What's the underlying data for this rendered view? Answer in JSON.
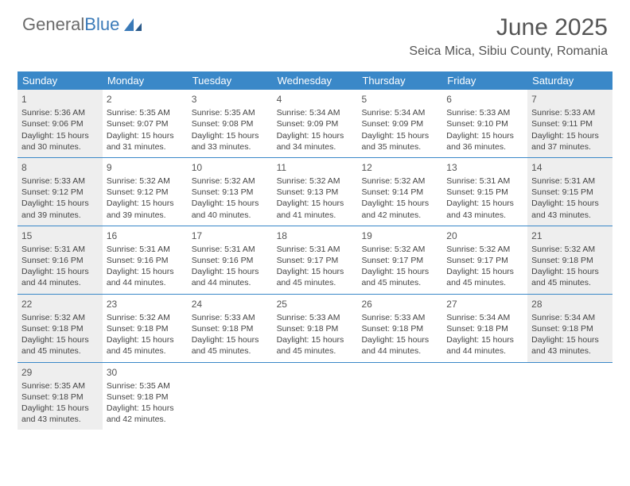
{
  "logo": {
    "part1": "General",
    "part2": "Blue"
  },
  "title": "June 2025",
  "location": "Seica Mica, Sibiu County, Romania",
  "colors": {
    "header_bg": "#3a88c8",
    "header_text": "#ffffff",
    "shaded_bg": "#eeeeee",
    "text": "#444444",
    "border": "#3a88c8"
  },
  "day_headers": [
    "Sunday",
    "Monday",
    "Tuesday",
    "Wednesday",
    "Thursday",
    "Friday",
    "Saturday"
  ],
  "weeks": [
    [
      {
        "day": "1",
        "sunrise": "5:36 AM",
        "sunset": "9:06 PM",
        "dl": "15 hours and 30 minutes.",
        "shaded": true
      },
      {
        "day": "2",
        "sunrise": "5:35 AM",
        "sunset": "9:07 PM",
        "dl": "15 hours and 31 minutes.",
        "shaded": false
      },
      {
        "day": "3",
        "sunrise": "5:35 AM",
        "sunset": "9:08 PM",
        "dl": "15 hours and 33 minutes.",
        "shaded": false
      },
      {
        "day": "4",
        "sunrise": "5:34 AM",
        "sunset": "9:09 PM",
        "dl": "15 hours and 34 minutes.",
        "shaded": false
      },
      {
        "day": "5",
        "sunrise": "5:34 AM",
        "sunset": "9:09 PM",
        "dl": "15 hours and 35 minutes.",
        "shaded": false
      },
      {
        "day": "6",
        "sunrise": "5:33 AM",
        "sunset": "9:10 PM",
        "dl": "15 hours and 36 minutes.",
        "shaded": false
      },
      {
        "day": "7",
        "sunrise": "5:33 AM",
        "sunset": "9:11 PM",
        "dl": "15 hours and 37 minutes.",
        "shaded": true
      }
    ],
    [
      {
        "day": "8",
        "sunrise": "5:33 AM",
        "sunset": "9:12 PM",
        "dl": "15 hours and 39 minutes.",
        "shaded": true
      },
      {
        "day": "9",
        "sunrise": "5:32 AM",
        "sunset": "9:12 PM",
        "dl": "15 hours and 39 minutes.",
        "shaded": false
      },
      {
        "day": "10",
        "sunrise": "5:32 AM",
        "sunset": "9:13 PM",
        "dl": "15 hours and 40 minutes.",
        "shaded": false
      },
      {
        "day": "11",
        "sunrise": "5:32 AM",
        "sunset": "9:13 PM",
        "dl": "15 hours and 41 minutes.",
        "shaded": false
      },
      {
        "day": "12",
        "sunrise": "5:32 AM",
        "sunset": "9:14 PM",
        "dl": "15 hours and 42 minutes.",
        "shaded": false
      },
      {
        "day": "13",
        "sunrise": "5:31 AM",
        "sunset": "9:15 PM",
        "dl": "15 hours and 43 minutes.",
        "shaded": false
      },
      {
        "day": "14",
        "sunrise": "5:31 AM",
        "sunset": "9:15 PM",
        "dl": "15 hours and 43 minutes.",
        "shaded": true
      }
    ],
    [
      {
        "day": "15",
        "sunrise": "5:31 AM",
        "sunset": "9:16 PM",
        "dl": "15 hours and 44 minutes.",
        "shaded": true
      },
      {
        "day": "16",
        "sunrise": "5:31 AM",
        "sunset": "9:16 PM",
        "dl": "15 hours and 44 minutes.",
        "shaded": false
      },
      {
        "day": "17",
        "sunrise": "5:31 AM",
        "sunset": "9:16 PM",
        "dl": "15 hours and 44 minutes.",
        "shaded": false
      },
      {
        "day": "18",
        "sunrise": "5:31 AM",
        "sunset": "9:17 PM",
        "dl": "15 hours and 45 minutes.",
        "shaded": false
      },
      {
        "day": "19",
        "sunrise": "5:32 AM",
        "sunset": "9:17 PM",
        "dl": "15 hours and 45 minutes.",
        "shaded": false
      },
      {
        "day": "20",
        "sunrise": "5:32 AM",
        "sunset": "9:17 PM",
        "dl": "15 hours and 45 minutes.",
        "shaded": false
      },
      {
        "day": "21",
        "sunrise": "5:32 AM",
        "sunset": "9:18 PM",
        "dl": "15 hours and 45 minutes.",
        "shaded": true
      }
    ],
    [
      {
        "day": "22",
        "sunrise": "5:32 AM",
        "sunset": "9:18 PM",
        "dl": "15 hours and 45 minutes.",
        "shaded": true
      },
      {
        "day": "23",
        "sunrise": "5:32 AM",
        "sunset": "9:18 PM",
        "dl": "15 hours and 45 minutes.",
        "shaded": false
      },
      {
        "day": "24",
        "sunrise": "5:33 AM",
        "sunset": "9:18 PM",
        "dl": "15 hours and 45 minutes.",
        "shaded": false
      },
      {
        "day": "25",
        "sunrise": "5:33 AM",
        "sunset": "9:18 PM",
        "dl": "15 hours and 45 minutes.",
        "shaded": false
      },
      {
        "day": "26",
        "sunrise": "5:33 AM",
        "sunset": "9:18 PM",
        "dl": "15 hours and 44 minutes.",
        "shaded": false
      },
      {
        "day": "27",
        "sunrise": "5:34 AM",
        "sunset": "9:18 PM",
        "dl": "15 hours and 44 minutes.",
        "shaded": false
      },
      {
        "day": "28",
        "sunrise": "5:34 AM",
        "sunset": "9:18 PM",
        "dl": "15 hours and 43 minutes.",
        "shaded": true
      }
    ],
    [
      {
        "day": "29",
        "sunrise": "5:35 AM",
        "sunset": "9:18 PM",
        "dl": "15 hours and 43 minutes.",
        "shaded": true
      },
      {
        "day": "30",
        "sunrise": "5:35 AM",
        "sunset": "9:18 PM",
        "dl": "15 hours and 42 minutes.",
        "shaded": false
      },
      null,
      null,
      null,
      null,
      null
    ]
  ],
  "labels": {
    "sunrise": "Sunrise: ",
    "sunset": "Sunset: ",
    "daylight": "Daylight: "
  }
}
